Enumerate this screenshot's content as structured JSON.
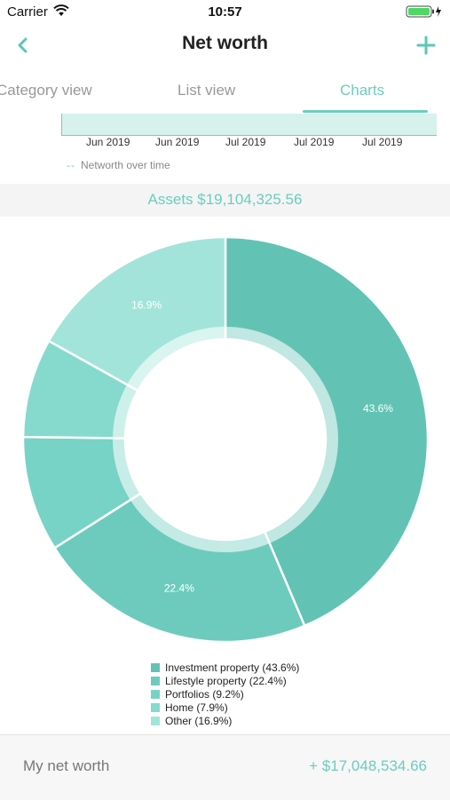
{
  "status_bar": {
    "carrier": "Carrier",
    "time": "10:57"
  },
  "nav": {
    "title": "Net worth"
  },
  "tabs": [
    {
      "label": "Category view"
    },
    {
      "label": "List view"
    },
    {
      "label": "Charts",
      "active": true
    }
  ],
  "timeline": {
    "ticks": [
      "Jun 2019",
      "Jun 2019",
      "Jul 2019",
      "Jul 2019",
      "Jul 2019"
    ],
    "legend": "Networth over time"
  },
  "assets": {
    "label": "Assets $19,104,325.56"
  },
  "chart_data": {
    "type": "pie",
    "categories": [
      "Investment property",
      "Lifestyle property",
      "Portfolios",
      "Home",
      "Other"
    ],
    "values": [
      43.6,
      22.4,
      9.2,
      7.9,
      16.9
    ],
    "data_labels": [
      "43.6%",
      "22.4%",
      "",
      "",
      "16.9%"
    ],
    "legend_labels": [
      "Investment property (43.6%)",
      "Lifestyle property (22.4%)",
      "Portfolios (9.2%)",
      "Home (7.9%)",
      "Other (16.9%)"
    ],
    "colors": [
      "#62c3b4",
      "#6ccbbd",
      "#76d3c5",
      "#86dacd",
      "#a3e4da"
    ],
    "legend_placement": "bottom"
  },
  "footer": {
    "label": "My net worth",
    "value": "+ $17,048,534.66"
  },
  "colors": {
    "accent": "#6bcdbf"
  }
}
